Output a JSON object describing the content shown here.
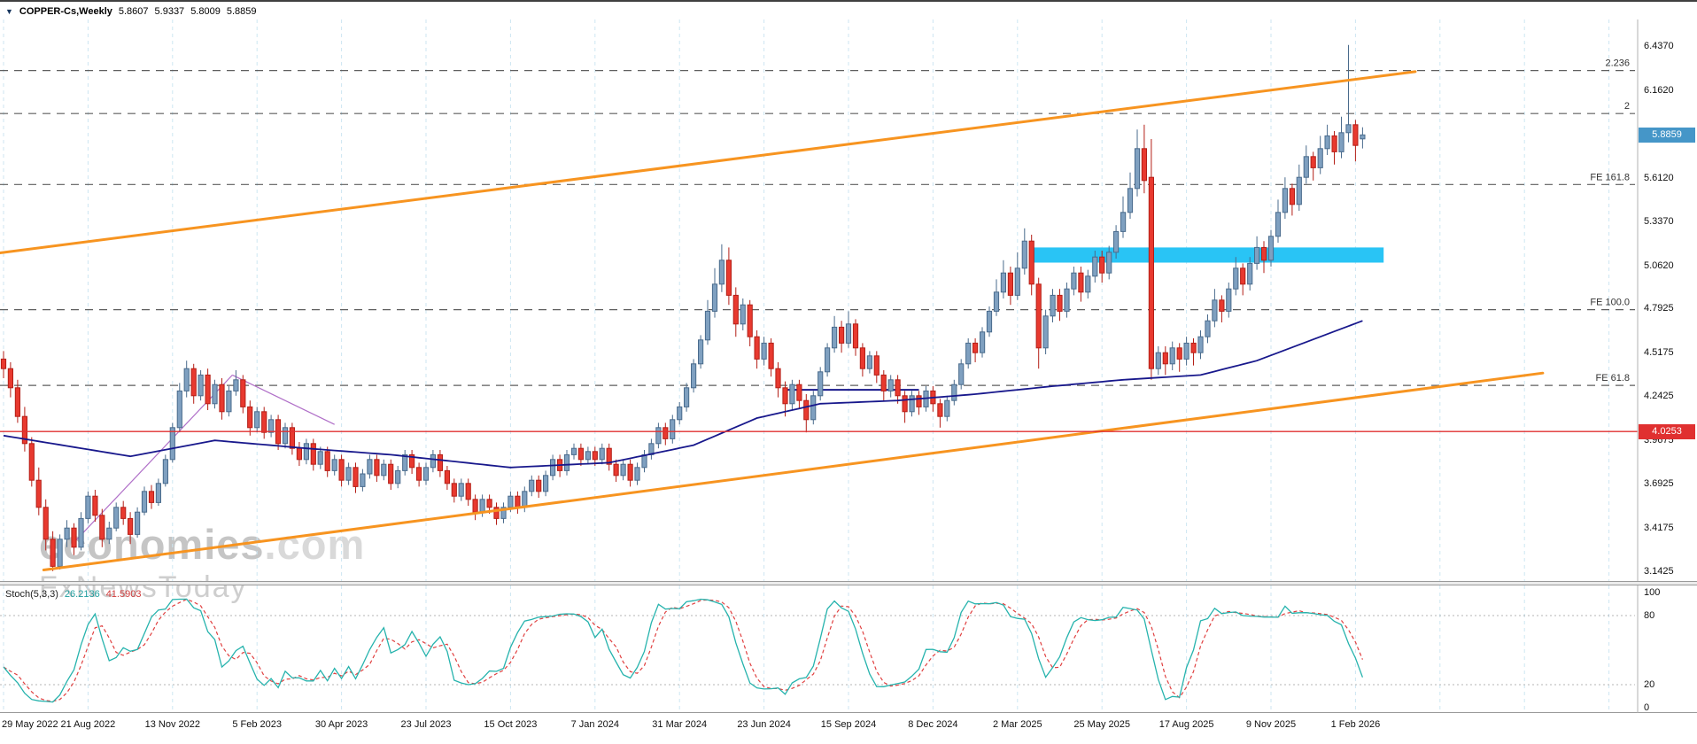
{
  "window": {
    "title_symbol": "COPPER-Cs,Weekly",
    "ohlc": {
      "open": "5.8607",
      "high": "5.9337",
      "low": "5.8009",
      "close": "5.8859"
    }
  },
  "watermark": {
    "line1_bold": "economies",
    "line1_light": ".com",
    "line2": "FxNewsToday"
  },
  "colors": {
    "up": "#7fa0c0",
    "up_border": "#4a6b8c",
    "down": "#e8392f",
    "down_border": "#b41f17",
    "grid": "#cde6f2",
    "fib": "#5f5f5f",
    "channel": "#f79420",
    "zone": "#29c4f5",
    "hline": "#e03030",
    "ma": "#18188c",
    "wedge": "#b06fc8",
    "stoch_k": "#26b3ad",
    "stoch_d": "#e04040",
    "current_tag": "#4596c8",
    "hline_tag": "#e03030"
  },
  "chart_data": {
    "type": "candlestick",
    "title": "COPPER-Cs,Weekly",
    "timeframe": "Weekly",
    "y_view_range": [
      3.08,
      6.61
    ],
    "x_label_step": 12,
    "x_labels": [
      "29 May 2022",
      "21 Aug 2022",
      "13 Nov 2022",
      "5 Feb 2023",
      "30 Apr 2023",
      "23 Jul 2023",
      "15 Oct 2023",
      "7 Jan 2024",
      "31 Mar 2024",
      "23 Jun 2024",
      "15 Sep 2024",
      "8 Dec 2024",
      "2 Mar 2025",
      "25 May 2025",
      "17 Aug 2025",
      "9 Nov 2025",
      "1 Feb 2026"
    ],
    "y_ticks": [
      {
        "label": "6.4370",
        "price": 6.437
      },
      {
        "label": "6.1620",
        "price": 6.162
      },
      {
        "label": "5.6120",
        "price": 5.612
      },
      {
        "label": "5.3370",
        "price": 5.337
      },
      {
        "label": "5.0620",
        "price": 5.062
      },
      {
        "label": "4.7925",
        "price": 4.7925
      },
      {
        "label": "4.5175",
        "price": 4.5175
      },
      {
        "label": "4.2425",
        "price": 4.2425
      },
      {
        "label": "3.9675",
        "price": 3.9675
      },
      {
        "label": "3.6925",
        "price": 3.6925
      },
      {
        "label": "3.4175",
        "price": 3.4175
      },
      {
        "label": "3.1425",
        "price": 3.1425
      }
    ],
    "current_price": {
      "label": "5.8859",
      "price": 5.8859
    },
    "red_hline": {
      "label": "4.0253",
      "price": 4.0253
    },
    "fib_levels": [
      {
        "label": "2.236",
        "price": 6.29
      },
      {
        "label": "2",
        "price": 6.02
      },
      {
        "label": "FE 161.8",
        "price": 5.575
      },
      {
        "label": "FE 100.0",
        "price": 4.79
      },
      {
        "label": "FE 61.8",
        "price": 4.315
      }
    ],
    "trend_channel": [
      {
        "name": "upper",
        "from": {
          "i": -0.5,
          "price": 5.146
        },
        "to": {
          "i": 200.5,
          "price": 6.283
        }
      },
      {
        "name": "lower",
        "from": {
          "i": 5.7,
          "price": 3.157
        },
        "to": {
          "i": 218.6,
          "price": 4.392
        }
      }
    ],
    "resistance_zone": {
      "i_from": 146,
      "i_to": 196,
      "price_from": 5.085,
      "price_to": 5.18
    },
    "support_segment": {
      "i_from": 111,
      "i_to": 130,
      "price": 4.287
    },
    "wedge_lines": [
      {
        "from": {
          "i": 10,
          "price": 3.33
        },
        "to": {
          "i": 32.5,
          "price": 4.38
        }
      },
      {
        "from": {
          "i": 32.5,
          "price": 4.38
        },
        "to": {
          "i": 47,
          "price": 4.07
        }
      }
    ],
    "ma_anchors": [
      [
        0,
        4.0
      ],
      [
        18,
        3.87
      ],
      [
        30,
        3.97
      ],
      [
        43,
        3.92
      ],
      [
        55,
        3.88
      ],
      [
        72,
        3.8
      ],
      [
        86,
        3.83
      ],
      [
        98,
        3.94
      ],
      [
        107,
        4.11
      ],
      [
        116,
        4.2
      ],
      [
        127,
        4.22
      ],
      [
        138,
        4.26
      ],
      [
        149,
        4.31
      ],
      [
        159,
        4.35
      ],
      [
        170,
        4.38
      ],
      [
        178,
        4.47
      ],
      [
        187,
        4.62
      ],
      [
        193,
        4.72
      ]
    ],
    "candles": [
      [
        4.48,
        4.53,
        4.36,
        4.42
      ],
      [
        4.42,
        4.46,
        4.24,
        4.3
      ],
      [
        4.3,
        4.35,
        4.08,
        4.12
      ],
      [
        4.12,
        4.18,
        3.9,
        3.95
      ],
      [
        3.95,
        3.99,
        3.68,
        3.72
      ],
      [
        3.72,
        3.8,
        3.5,
        3.55
      ],
      [
        3.55,
        3.6,
        3.28,
        3.35
      ],
      [
        3.35,
        3.4,
        3.15,
        3.18
      ],
      [
        3.18,
        3.38,
        3.16,
        3.35
      ],
      [
        3.35,
        3.47,
        3.3,
        3.42
      ],
      [
        3.42,
        3.45,
        3.25,
        3.3
      ],
      [
        3.3,
        3.52,
        3.28,
        3.48
      ],
      [
        3.48,
        3.65,
        3.45,
        3.62
      ],
      [
        3.62,
        3.66,
        3.46,
        3.5
      ],
      [
        3.5,
        3.54,
        3.3,
        3.35
      ],
      [
        3.35,
        3.46,
        3.32,
        3.42
      ],
      [
        3.42,
        3.58,
        3.4,
        3.55
      ],
      [
        3.55,
        3.59,
        3.44,
        3.48
      ],
      [
        3.48,
        3.52,
        3.32,
        3.38
      ],
      [
        3.38,
        3.55,
        3.36,
        3.52
      ],
      [
        3.52,
        3.68,
        3.5,
        3.65
      ],
      [
        3.65,
        3.69,
        3.54,
        3.58
      ],
      [
        3.58,
        3.73,
        3.56,
        3.7
      ],
      [
        3.7,
        3.88,
        3.68,
        3.85
      ],
      [
        3.85,
        4.08,
        3.83,
        4.05
      ],
      [
        4.05,
        4.33,
        4.02,
        4.28
      ],
      [
        4.28,
        4.47,
        4.24,
        4.42
      ],
      [
        4.42,
        4.45,
        4.2,
        4.25
      ],
      [
        4.25,
        4.41,
        4.22,
        4.38
      ],
      [
        4.38,
        4.42,
        4.16,
        4.2
      ],
      [
        4.2,
        4.35,
        4.17,
        4.32
      ],
      [
        4.32,
        4.36,
        4.1,
        4.15
      ],
      [
        4.15,
        4.31,
        4.12,
        4.28
      ],
      [
        4.28,
        4.41,
        4.25,
        4.35
      ],
      [
        4.35,
        4.38,
        4.14,
        4.18
      ],
      [
        4.18,
        4.22,
        4.0,
        4.05
      ],
      [
        4.05,
        4.18,
        4.02,
        4.15
      ],
      [
        4.15,
        4.18,
        3.98,
        4.02
      ],
      [
        4.02,
        4.13,
        3.99,
        4.1
      ],
      [
        4.1,
        4.13,
        3.91,
        3.95
      ],
      [
        3.95,
        4.08,
        3.92,
        4.05
      ],
      [
        4.05,
        4.08,
        3.88,
        3.92
      ],
      [
        3.92,
        3.96,
        3.81,
        3.85
      ],
      [
        3.85,
        3.98,
        3.82,
        3.95
      ],
      [
        3.95,
        3.98,
        3.78,
        3.82
      ],
      [
        3.82,
        3.93,
        3.79,
        3.9
      ],
      [
        3.9,
        3.93,
        3.74,
        3.78
      ],
      [
        3.78,
        3.88,
        3.75,
        3.85
      ],
      [
        3.85,
        3.88,
        3.68,
        3.72
      ],
      [
        3.72,
        3.83,
        3.69,
        3.8
      ],
      [
        3.8,
        3.83,
        3.64,
        3.68
      ],
      [
        3.68,
        3.79,
        3.65,
        3.76
      ],
      [
        3.76,
        3.88,
        3.73,
        3.85
      ],
      [
        3.85,
        3.88,
        3.71,
        3.75
      ],
      [
        3.75,
        3.85,
        3.72,
        3.82
      ],
      [
        3.82,
        3.85,
        3.66,
        3.7
      ],
      [
        3.7,
        3.81,
        3.67,
        3.78
      ],
      [
        3.78,
        3.91,
        3.75,
        3.88
      ],
      [
        3.88,
        3.91,
        3.76,
        3.8
      ],
      [
        3.8,
        3.83,
        3.68,
        3.72
      ],
      [
        3.72,
        3.83,
        3.69,
        3.8
      ],
      [
        3.8,
        3.91,
        3.77,
        3.88
      ],
      [
        3.88,
        3.91,
        3.74,
        3.78
      ],
      [
        3.78,
        3.81,
        3.66,
        3.7
      ],
      [
        3.7,
        3.73,
        3.58,
        3.62
      ],
      [
        3.62,
        3.73,
        3.59,
        3.7
      ],
      [
        3.7,
        3.73,
        3.56,
        3.6
      ],
      [
        3.6,
        3.63,
        3.47,
        3.52
      ],
      [
        3.52,
        3.63,
        3.49,
        3.6
      ],
      [
        3.6,
        3.63,
        3.51,
        3.55
      ],
      [
        3.55,
        3.58,
        3.44,
        3.48
      ],
      [
        3.48,
        3.58,
        3.45,
        3.55
      ],
      [
        3.55,
        3.65,
        3.52,
        3.62
      ],
      [
        3.62,
        3.65,
        3.51,
        3.55
      ],
      [
        3.55,
        3.68,
        3.52,
        3.65
      ],
      [
        3.65,
        3.75,
        3.62,
        3.72
      ],
      [
        3.72,
        3.75,
        3.61,
        3.65
      ],
      [
        3.65,
        3.78,
        3.62,
        3.75
      ],
      [
        3.75,
        3.88,
        3.72,
        3.85
      ],
      [
        3.85,
        3.88,
        3.74,
        3.78
      ],
      [
        3.78,
        3.91,
        3.75,
        3.88
      ],
      [
        3.88,
        3.95,
        3.85,
        3.92
      ],
      [
        3.92,
        3.95,
        3.81,
        3.85
      ],
      [
        3.85,
        3.93,
        3.82,
        3.9
      ],
      [
        3.9,
        3.93,
        3.81,
        3.85
      ],
      [
        3.85,
        3.95,
        3.82,
        3.92
      ],
      [
        3.92,
        3.95,
        3.78,
        3.82
      ],
      [
        3.82,
        3.85,
        3.71,
        3.75
      ],
      [
        3.75,
        3.85,
        3.72,
        3.82
      ],
      [
        3.82,
        3.85,
        3.68,
        3.72
      ],
      [
        3.72,
        3.83,
        3.69,
        3.8
      ],
      [
        3.8,
        3.91,
        3.77,
        3.88
      ],
      [
        3.88,
        3.98,
        3.85,
        3.95
      ],
      [
        3.95,
        4.08,
        3.92,
        4.05
      ],
      [
        4.05,
        4.08,
        3.94,
        3.98
      ],
      [
        3.98,
        4.13,
        3.95,
        4.1
      ],
      [
        4.1,
        4.21,
        4.07,
        4.18
      ],
      [
        4.18,
        4.33,
        4.15,
        4.3
      ],
      [
        4.3,
        4.48,
        4.27,
        4.45
      ],
      [
        4.45,
        4.63,
        4.42,
        4.6
      ],
      [
        4.6,
        4.85,
        4.57,
        4.78
      ],
      [
        4.78,
        5.05,
        4.74,
        4.95
      ],
      [
        4.95,
        5.2,
        4.9,
        5.1
      ],
      [
        5.1,
        5.18,
        4.82,
        4.88
      ],
      [
        4.88,
        4.93,
        4.62,
        4.7
      ],
      [
        4.7,
        4.86,
        4.66,
        4.82
      ],
      [
        4.82,
        4.85,
        4.56,
        4.62
      ],
      [
        4.62,
        4.66,
        4.42,
        4.48
      ],
      [
        4.48,
        4.62,
        4.44,
        4.58
      ],
      [
        4.58,
        4.61,
        4.37,
        4.42
      ],
      [
        4.42,
        4.46,
        4.24,
        4.3
      ],
      [
        4.3,
        4.34,
        4.12,
        4.2
      ],
      [
        4.2,
        4.35,
        4.16,
        4.32
      ],
      [
        4.32,
        4.35,
        4.17,
        4.22
      ],
      [
        4.22,
        4.26,
        4.02,
        4.1
      ],
      [
        4.1,
        4.28,
        4.07,
        4.25
      ],
      [
        4.25,
        4.43,
        4.22,
        4.4
      ],
      [
        4.4,
        4.58,
        4.37,
        4.55
      ],
      [
        4.55,
        4.75,
        4.52,
        4.68
      ],
      [
        4.68,
        4.72,
        4.52,
        4.58
      ],
      [
        4.58,
        4.78,
        4.55,
        4.7
      ],
      [
        4.7,
        4.73,
        4.5,
        4.55
      ],
      [
        4.55,
        4.58,
        4.37,
        4.42
      ],
      [
        4.42,
        4.53,
        4.39,
        4.5
      ],
      [
        4.5,
        4.53,
        4.33,
        4.38
      ],
      [
        4.38,
        4.41,
        4.22,
        4.28
      ],
      [
        4.28,
        4.38,
        4.24,
        4.35
      ],
      [
        4.35,
        4.38,
        4.2,
        4.25
      ],
      [
        4.25,
        4.28,
        4.08,
        4.15
      ],
      [
        4.15,
        4.28,
        4.12,
        4.25
      ],
      [
        4.25,
        4.28,
        4.13,
        4.18
      ],
      [
        4.18,
        4.31,
        4.15,
        4.28
      ],
      [
        4.28,
        4.31,
        4.15,
        4.2
      ],
      [
        4.2,
        4.23,
        4.05,
        4.12
      ],
      [
        4.12,
        4.25,
        4.09,
        4.22
      ],
      [
        4.22,
        4.35,
        4.19,
        4.32
      ],
      [
        4.32,
        4.48,
        4.29,
        4.45
      ],
      [
        4.45,
        4.61,
        4.42,
        4.58
      ],
      [
        4.58,
        4.61,
        4.46,
        4.52
      ],
      [
        4.52,
        4.68,
        4.49,
        4.65
      ],
      [
        4.65,
        4.81,
        4.62,
        4.78
      ],
      [
        4.78,
        4.98,
        4.75,
        4.9
      ],
      [
        4.9,
        5.1,
        4.86,
        5.02
      ],
      [
        5.02,
        5.06,
        4.82,
        4.88
      ],
      [
        4.88,
        5.15,
        4.85,
        5.05
      ],
      [
        5.05,
        5.3,
        5.01,
        5.22
      ],
      [
        5.22,
        5.26,
        4.88,
        4.95
      ],
      [
        4.95,
        4.99,
        4.42,
        4.55
      ],
      [
        4.55,
        4.79,
        4.51,
        4.75
      ],
      [
        4.75,
        4.92,
        4.71,
        4.88
      ],
      [
        4.88,
        4.92,
        4.72,
        4.78
      ],
      [
        4.78,
        4.96,
        4.74,
        4.92
      ],
      [
        4.92,
        5.06,
        4.88,
        5.02
      ],
      [
        5.02,
        5.06,
        4.84,
        4.9
      ],
      [
        4.9,
        5.04,
        4.86,
        5.0
      ],
      [
        5.0,
        5.16,
        4.96,
        5.12
      ],
      [
        5.12,
        5.16,
        4.96,
        5.02
      ],
      [
        5.02,
        5.19,
        4.98,
        5.15
      ],
      [
        5.15,
        5.32,
        5.11,
        5.28
      ],
      [
        5.28,
        5.5,
        5.24,
        5.4
      ],
      [
        5.4,
        5.65,
        5.36,
        5.55
      ],
      [
        5.55,
        5.92,
        5.5,
        5.8
      ],
      [
        5.8,
        5.95,
        5.52,
        5.6
      ],
      [
        5.62,
        5.86,
        4.35,
        4.42
      ],
      [
        4.42,
        4.56,
        4.38,
        4.52
      ],
      [
        4.52,
        4.56,
        4.38,
        4.45
      ],
      [
        4.45,
        4.59,
        4.41,
        4.55
      ],
      [
        4.55,
        4.58,
        4.4,
        4.48
      ],
      [
        4.48,
        4.62,
        4.44,
        4.58
      ],
      [
        4.58,
        4.61,
        4.44,
        4.52
      ],
      [
        4.52,
        4.66,
        4.48,
        4.62
      ],
      [
        4.62,
        4.76,
        4.58,
        4.72
      ],
      [
        4.72,
        4.92,
        4.68,
        4.85
      ],
      [
        4.85,
        4.88,
        4.71,
        4.78
      ],
      [
        4.78,
        4.96,
        4.74,
        4.92
      ],
      [
        4.92,
        5.12,
        4.88,
        5.05
      ],
      [
        5.05,
        5.08,
        4.88,
        4.95
      ],
      [
        4.95,
        5.12,
        4.91,
        5.08
      ],
      [
        5.08,
        5.25,
        5.04,
        5.18
      ],
      [
        5.18,
        5.22,
        5.02,
        5.1
      ],
      [
        5.1,
        5.29,
        5.06,
        5.25
      ],
      [
        5.25,
        5.48,
        5.21,
        5.4
      ],
      [
        5.4,
        5.62,
        5.36,
        5.55
      ],
      [
        5.55,
        5.58,
        5.38,
        5.45
      ],
      [
        5.45,
        5.7,
        5.41,
        5.62
      ],
      [
        5.62,
        5.82,
        5.58,
        5.75
      ],
      [
        5.75,
        5.78,
        5.6,
        5.68
      ],
      [
        5.68,
        5.88,
        5.64,
        5.8
      ],
      [
        5.8,
        5.95,
        5.76,
        5.88
      ],
      [
        5.88,
        5.91,
        5.7,
        5.78
      ],
      [
        5.78,
        6.0,
        5.74,
        5.9
      ],
      [
        5.9,
        6.45,
        5.84,
        5.95
      ],
      [
        5.95,
        5.98,
        5.72,
        5.82
      ],
      [
        5.8607,
        5.9337,
        5.8009,
        5.8859
      ]
    ],
    "stochastic": {
      "name": "Stoch(5,3,3)",
      "value_main": "26.2136",
      "value_signal": "41.5903",
      "k_period": 5,
      "d_period": 3,
      "slowing": 3,
      "range": [
        0,
        100
      ],
      "levels": [
        80,
        20
      ],
      "axis_labels": [
        {
          "label": "100",
          "value": 100
        },
        {
          "label": "80",
          "value": 80
        },
        {
          "label": "20",
          "value": 20
        },
        {
          "label": "0",
          "value": 0
        }
      ]
    }
  }
}
